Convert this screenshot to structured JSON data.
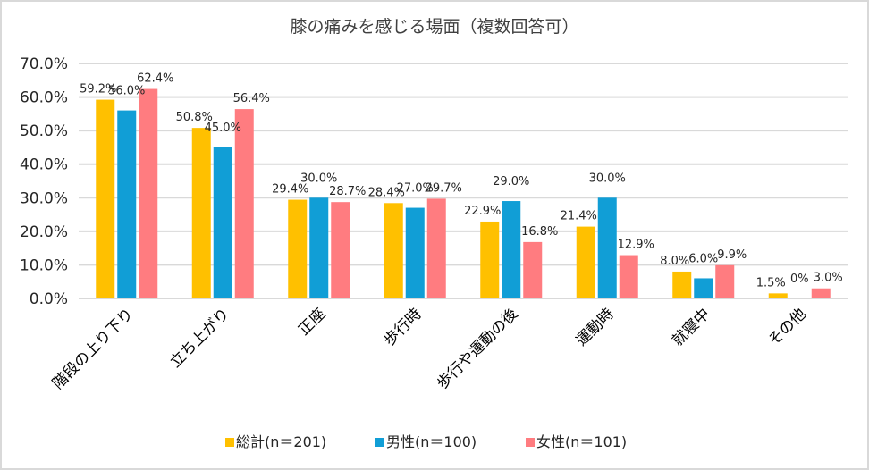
{
  "chart_data": {
    "type": "bar",
    "title": "膝の痛みを感じる場面（複数回答可）",
    "xlabel": "",
    "ylabel": "",
    "ylim": [
      0,
      70
    ],
    "y_ticks": [
      "0.0%",
      "10.0%",
      "20.0%",
      "30.0%",
      "40.0%",
      "50.0%",
      "60.0%",
      "70.0%"
    ],
    "y_tick_values": [
      0,
      10,
      20,
      30,
      40,
      50,
      60,
      70
    ],
    "grid": true,
    "legend_position": "bottom",
    "categories": [
      "階段の上り下り",
      "立ち上がり",
      "正座",
      "歩行時",
      "歩行や運動の後",
      "運動時",
      "就寝中",
      "その他"
    ],
    "series": [
      {
        "name": "総計(n＝201)",
        "color": "#ffc000",
        "values": [
          59.2,
          50.8,
          29.4,
          28.4,
          22.9,
          21.4,
          8.0,
          1.5
        ],
        "labels": [
          "59.2%",
          "50.8%",
          "29.4%",
          "28.4%",
          "22.9%",
          "21.4%",
          "8.0%",
          "1.5%"
        ]
      },
      {
        "name": "男性(n＝100)",
        "color": "#119ed6",
        "values": [
          56.0,
          45.0,
          30.0,
          27.0,
          29.0,
          30.0,
          6.0,
          0
        ],
        "labels": [
          "56.0%",
          "45.0%",
          "30.0%",
          "27.0%",
          "29.0%",
          "30.0%",
          "6.0%",
          "0%"
        ]
      },
      {
        "name": "女性(n＝101)",
        "color": "#ff7c80",
        "values": [
          62.4,
          56.4,
          28.7,
          29.7,
          16.8,
          12.9,
          9.9,
          3.0
        ],
        "labels": [
          "62.4%",
          "56.4%",
          "28.7%",
          "29.7%",
          "16.8%",
          "12.9%",
          "9.9%",
          "3.0%"
        ]
      }
    ]
  }
}
